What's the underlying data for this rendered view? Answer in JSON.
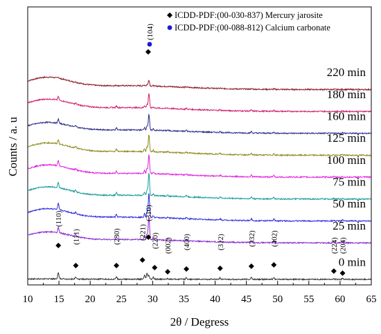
{
  "chart_data": {
    "type": "line",
    "xlabel": "2θ / Degress",
    "ylabel": "Counts / a. u",
    "xlim": [
      10,
      65
    ],
    "x_ticks": [
      10,
      15,
      20,
      25,
      30,
      35,
      40,
      45,
      50,
      55,
      60,
      65
    ],
    "y_ticks_shown": false,
    "grid": false,
    "legend_position": "top-right",
    "legend": [
      {
        "marker": "diamond",
        "color": "#000000",
        "label": "ICDD-PDF:(00-030-837) Mercury jarosite"
      },
      {
        "marker": "circle",
        "color": "#1b1bd6",
        "label": "ICDD-PDF:(00-088-812) Calcium carbonate"
      }
    ],
    "series": [
      {
        "name": "220 min",
        "color": "#8a1a2a",
        "offset": 7.8,
        "hump": 0.45,
        "jarosite_scale": 0.12,
        "calcite_peak": 0.25
      },
      {
        "name": "180 min",
        "color": "#d0206a",
        "offset": 6.9,
        "hump": 0.45,
        "jarosite_scale": 0.32,
        "calcite_peak": 0.6
      },
      {
        "name": "160 min",
        "color": "#2a2a8a",
        "offset": 6.0,
        "hump": 0.4,
        "jarosite_scale": 0.4,
        "calcite_peak": 0.65
      },
      {
        "name": "125 min",
        "color": "#8a8a1a",
        "offset": 5.1,
        "hump": 0.45,
        "jarosite_scale": 0.42,
        "calcite_peak": 0.7
      },
      {
        "name": "100 min",
        "color": "#e020e0",
        "offset": 4.2,
        "hump": 0.45,
        "jarosite_scale": 0.45,
        "calcite_peak": 0.8
      },
      {
        "name": "75 min",
        "color": "#1a9a9a",
        "offset": 3.3,
        "hump": 0.45,
        "jarosite_scale": 0.5,
        "calcite_peak": 0.95
      },
      {
        "name": "50 min",
        "color": "#2a2ae0",
        "offset": 2.4,
        "hump": 0.45,
        "jarosite_scale": 0.55,
        "calcite_peak": 1.0
      },
      {
        "name": "25 min",
        "color": "#8a2ad0",
        "offset": 1.5,
        "hump": 0.4,
        "jarosite_scale": 0.55,
        "calcite_peak": 0.95
      },
      {
        "name": "0 min",
        "color": "#333333",
        "offset": 0.0,
        "hump": 0.02,
        "jarosite_scale": 0.55,
        "calcite_peak": 0.15
      }
    ],
    "jarosite_peaks": [
      {
        "hkl": "(110)",
        "two_theta": 14.9,
        "intensity": 0.45
      },
      {
        "hkl": "(111)",
        "two_theta": 17.7,
        "intensity": 0.15
      },
      {
        "hkl": "(230)",
        "two_theta": 24.2,
        "intensity": 0.2
      },
      {
        "hkl": "(221)",
        "two_theta": 28.7,
        "intensity": 0.3
      },
      {
        "hkl": "(310)",
        "two_theta": 29.1,
        "intensity": 0.45
      },
      {
        "hkl": "(220)",
        "two_theta": 30.1,
        "intensity": 0.15
      },
      {
        "hkl": "(002)",
        "two_theta": 32.4,
        "intensity": 0.07
      },
      {
        "hkl": "(400)",
        "two_theta": 35.4,
        "intensity": 0.12
      },
      {
        "hkl": "(312)",
        "two_theta": 40.8,
        "intensity": 0.1
      },
      {
        "hkl": "(332)",
        "two_theta": 45.8,
        "intensity": 0.15
      },
      {
        "hkl": "(402)",
        "two_theta": 49.4,
        "intensity": 0.15
      },
      {
        "hkl": "(224)",
        "two_theta": 59.0,
        "intensity": 0.05
      },
      {
        "hkl": "(204)",
        "two_theta": 60.4,
        "intensity": 0.07
      }
    ],
    "calcite_peak_label": {
      "hkl": "(104)",
      "two_theta": 29.4
    }
  }
}
